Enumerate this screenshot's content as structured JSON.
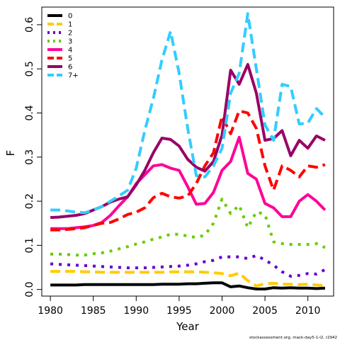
{
  "chart_data": {
    "type": "line",
    "xlabel": "Year",
    "ylabel": "F",
    "footnote": "stockassessment.org, mack-day5-1-l2, r2942",
    "xlim": [
      1979,
      2013
    ],
    "ylim": [
      -0.015,
      0.64
    ],
    "x_ticks": [
      1980,
      1985,
      1990,
      1995,
      2000,
      2005,
      2010
    ],
    "y_ticks": [
      0.0,
      0.1,
      0.2,
      0.3,
      0.4,
      0.5,
      0.6
    ],
    "y_tick_labels": [
      "0.0",
      "0.1",
      "0.2",
      "0.3",
      "0.4",
      "0.5",
      "0.6"
    ],
    "legend_position": "top-left",
    "x": [
      1980,
      1981,
      1982,
      1983,
      1984,
      1985,
      1986,
      1987,
      1988,
      1989,
      1990,
      1991,
      1992,
      1993,
      1994,
      1995,
      1996,
      1997,
      1998,
      1999,
      2000,
      2001,
      2002,
      2003,
      2004,
      2005,
      2006,
      2007,
      2008,
      2009,
      2010,
      2011,
      2012
    ],
    "series": [
      {
        "name": "0",
        "color": "#000000",
        "dash": "solid",
        "values": [
          0.01,
          0.01,
          0.01,
          0.01,
          0.011,
          0.011,
          0.011,
          0.011,
          0.011,
          0.011,
          0.011,
          0.011,
          0.011,
          0.012,
          0.012,
          0.012,
          0.013,
          0.013,
          0.014,
          0.015,
          0.015,
          0.006,
          0.008,
          0.004,
          0.001,
          0.001,
          0.004,
          0.003,
          0.004,
          0.003,
          0.003,
          0.002,
          0.003
        ]
      },
      {
        "name": "1",
        "color": "#FFCC00",
        "dash": "dashed",
        "values": [
          0.041,
          0.041,
          0.041,
          0.041,
          0.04,
          0.04,
          0.039,
          0.039,
          0.039,
          0.039,
          0.039,
          0.039,
          0.039,
          0.039,
          0.04,
          0.04,
          0.04,
          0.04,
          0.039,
          0.038,
          0.036,
          0.031,
          0.037,
          0.02,
          0.008,
          0.013,
          0.014,
          0.012,
          0.012,
          0.011,
          0.012,
          0.01,
          0.009
        ]
      },
      {
        "name": "2",
        "color": "#6600CC",
        "dash": "dotted",
        "values": [
          0.058,
          0.057,
          0.056,
          0.055,
          0.054,
          0.053,
          0.052,
          0.051,
          0.05,
          0.049,
          0.049,
          0.049,
          0.05,
          0.051,
          0.052,
          0.053,
          0.055,
          0.058,
          0.063,
          0.066,
          0.074,
          0.074,
          0.074,
          0.07,
          0.077,
          0.067,
          0.055,
          0.04,
          0.03,
          0.032,
          0.036,
          0.035,
          0.045
        ]
      },
      {
        "name": "3",
        "color": "#66CC00",
        "dash": "dotted",
        "values": [
          0.08,
          0.08,
          0.079,
          0.078,
          0.078,
          0.081,
          0.083,
          0.087,
          0.092,
          0.097,
          0.103,
          0.108,
          0.114,
          0.119,
          0.125,
          0.125,
          0.121,
          0.118,
          0.123,
          0.15,
          0.205,
          0.172,
          0.191,
          0.14,
          0.176,
          0.17,
          0.108,
          0.104,
          0.102,
          0.102,
          0.102,
          0.104,
          0.095
        ]
      },
      {
        "name": "4",
        "color": "#FF0099",
        "dash": "solid",
        "values": [
          0.138,
          0.138,
          0.138,
          0.14,
          0.142,
          0.145,
          0.152,
          0.168,
          0.19,
          0.21,
          0.24,
          0.26,
          0.28,
          0.283,
          0.275,
          0.27,
          0.233,
          0.193,
          0.195,
          0.22,
          0.27,
          0.29,
          0.345,
          0.263,
          0.25,
          0.195,
          0.185,
          0.165,
          0.165,
          0.2,
          0.215,
          0.2,
          0.18
        ]
      },
      {
        "name": "5",
        "color": "#FF0000",
        "dash": "dashed",
        "values": [
          0.135,
          0.135,
          0.136,
          0.138,
          0.14,
          0.145,
          0.15,
          0.152,
          0.16,
          0.17,
          0.175,
          0.185,
          0.208,
          0.218,
          0.21,
          0.207,
          0.212,
          0.24,
          0.28,
          0.31,
          0.393,
          0.353,
          0.405,
          0.4,
          0.365,
          0.28,
          0.225,
          0.28,
          0.27,
          0.255,
          0.28,
          0.277,
          0.283
        ]
      },
      {
        "name": "6",
        "color": "#990066",
        "dash": "solid",
        "values": [
          0.163,
          0.164,
          0.166,
          0.168,
          0.172,
          0.18,
          0.188,
          0.198,
          0.205,
          0.21,
          0.237,
          0.27,
          0.31,
          0.343,
          0.34,
          0.325,
          0.295,
          0.277,
          0.268,
          0.29,
          0.35,
          0.497,
          0.465,
          0.51,
          0.445,
          0.338,
          0.342,
          0.36,
          0.303,
          0.338,
          0.32,
          0.348,
          0.338
        ]
      },
      {
        "name": "7+",
        "color": "#33CCFF",
        "dash": "dashed",
        "values": [
          0.18,
          0.18,
          0.178,
          0.175,
          0.174,
          0.18,
          0.188,
          0.2,
          0.212,
          0.225,
          0.275,
          0.36,
          0.433,
          0.52,
          0.585,
          0.49,
          0.365,
          0.258,
          0.255,
          0.28,
          0.32,
          0.445,
          0.49,
          0.625,
          0.5,
          0.373,
          0.338,
          0.465,
          0.46,
          0.375,
          0.377,
          0.41,
          0.39
        ]
      }
    ]
  }
}
